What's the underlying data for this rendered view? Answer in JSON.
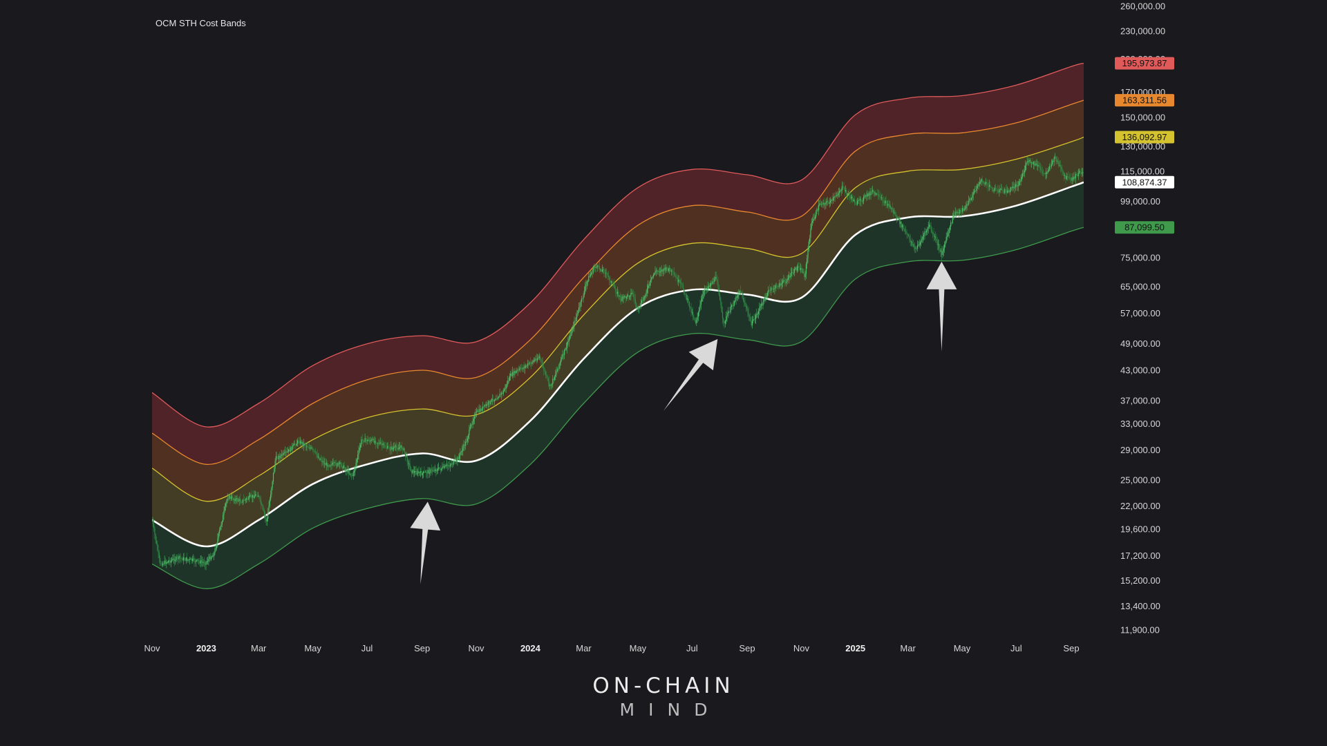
{
  "chart_data": {
    "type": "line",
    "title": "OCM STH Cost Bands",
    "y_scale": "log",
    "ylim": [
      11200,
      268000
    ],
    "xlim": [
      "2022-11-01",
      "2025-09-15"
    ],
    "grid": false,
    "y_ticks": [
      "260,000.00",
      "230,000.00",
      "200,000.00",
      "170,000.00",
      "150,000.00",
      "130,000.00",
      "115,000.00",
      "99,000.00",
      "75,000.00",
      "65,000.00",
      "57,000.00",
      "49,000.00",
      "43,000.00",
      "37,000.00",
      "33,000.00",
      "29,000.00",
      "25,000.00",
      "22,000.00",
      "19,600.00",
      "17,200.00",
      "15,200.00",
      "13,400.00",
      "11,900.00"
    ],
    "x_ticks": [
      {
        "label": "Nov",
        "date": "2022-11-01",
        "bold": false
      },
      {
        "label": "2023",
        "date": "2023-01-01",
        "bold": true
      },
      {
        "label": "Mar",
        "date": "2023-03-01",
        "bold": false
      },
      {
        "label": "May",
        "date": "2023-05-01",
        "bold": false
      },
      {
        "label": "Jul",
        "date": "2023-07-01",
        "bold": false
      },
      {
        "label": "Sep",
        "date": "2023-09-01",
        "bold": false
      },
      {
        "label": "Nov",
        "date": "2023-11-01",
        "bold": false
      },
      {
        "label": "2024",
        "date": "2024-01-01",
        "bold": true
      },
      {
        "label": "Mar",
        "date": "2024-03-01",
        "bold": false
      },
      {
        "label": "May",
        "date": "2024-05-01",
        "bold": false
      },
      {
        "label": "Jul",
        "date": "2024-07-01",
        "bold": false
      },
      {
        "label": "Sep",
        "date": "2024-09-01",
        "bold": false
      },
      {
        "label": "Nov",
        "date": "2024-11-01",
        "bold": false
      },
      {
        "label": "2025",
        "date": "2025-01-01",
        "bold": true
      },
      {
        "label": "Mar",
        "date": "2025-03-01",
        "bold": false
      },
      {
        "label": "May",
        "date": "2025-05-01",
        "bold": false
      },
      {
        "label": "Jul",
        "date": "2025-07-01",
        "bold": false
      },
      {
        "label": "Sep",
        "date": "2025-09-01",
        "bold": false
      }
    ],
    "series": [
      {
        "key": "upper3",
        "color": "#e05a5a",
        "last_value": "195,973.87",
        "x": [
          "2022-11-01",
          "2023-01-01",
          "2023-03-01",
          "2023-05-01",
          "2023-07-01",
          "2023-09-01",
          "2023-11-01",
          "2024-01-01",
          "2024-03-01",
          "2024-05-01",
          "2024-07-01",
          "2024-09-01",
          "2024-11-01",
          "2025-01-01",
          "2025-03-01",
          "2025-05-01",
          "2025-07-01",
          "2025-09-01",
          "2025-09-15"
        ],
        "y": [
          38500,
          32500,
          36500,
          44000,
          49000,
          51000,
          49500,
          60000,
          82000,
          106000,
          116000,
          113000,
          110000,
          152000,
          165000,
          167000,
          176000,
          193000,
          196000
        ]
      },
      {
        "key": "upper2",
        "color": "#e8882e",
        "last_value": "163,311.56",
        "x": [
          "2022-11-01",
          "2023-01-01",
          "2023-03-01",
          "2023-05-01",
          "2023-07-01",
          "2023-09-01",
          "2023-11-01",
          "2024-01-01",
          "2024-03-01",
          "2024-05-01",
          "2024-07-01",
          "2024-09-01",
          "2024-11-01",
          "2025-01-01",
          "2025-03-01",
          "2025-05-01",
          "2025-07-01",
          "2025-09-01",
          "2025-09-15"
        ],
        "y": [
          31500,
          27000,
          30500,
          36500,
          41000,
          43000,
          41500,
          50000,
          68000,
          88000,
          97000,
          94000,
          92000,
          127000,
          138000,
          139000,
          146000,
          160000,
          163300
        ]
      },
      {
        "key": "upper1",
        "color": "#d4c22e",
        "last_value": "136,092.97",
        "x": [
          "2022-11-01",
          "2023-01-01",
          "2023-03-01",
          "2023-05-01",
          "2023-07-01",
          "2023-09-01",
          "2023-11-01",
          "2024-01-01",
          "2024-03-01",
          "2024-05-01",
          "2024-07-01",
          "2024-09-01",
          "2024-11-01",
          "2025-01-01",
          "2025-03-01",
          "2025-05-01",
          "2025-07-01",
          "2025-09-01",
          "2025-09-15"
        ],
        "y": [
          26500,
          22500,
          25500,
          30500,
          34000,
          35500,
          34500,
          41500,
          56500,
          73000,
          80500,
          78500,
          76500,
          106000,
          115000,
          116000,
          122000,
          133000,
          136100
        ]
      },
      {
        "key": "sth_cost",
        "color": "#ffffff",
        "last_value": "108,874.37",
        "x": [
          "2022-11-01",
          "2023-01-01",
          "2023-03-01",
          "2023-05-01",
          "2023-07-01",
          "2023-09-01",
          "2023-11-01",
          "2024-01-01",
          "2024-03-01",
          "2024-05-01",
          "2024-07-01",
          "2024-09-01",
          "2024-11-01",
          "2025-01-01",
          "2025-03-01",
          "2025-05-01",
          "2025-07-01",
          "2025-09-01",
          "2025-09-15"
        ],
        "y": [
          20500,
          18000,
          20500,
          24500,
          27000,
          28500,
          27500,
          33500,
          45500,
          58500,
          64000,
          62500,
          61500,
          84000,
          91500,
          92000,
          97000,
          106500,
          108900
        ]
      },
      {
        "key": "lower1",
        "color": "#3f9a4c",
        "last_value": "87,099.50",
        "x": [
          "2022-11-01",
          "2023-01-01",
          "2023-03-01",
          "2023-05-01",
          "2023-07-01",
          "2023-09-01",
          "2023-11-01",
          "2024-01-01",
          "2024-03-01",
          "2024-05-01",
          "2024-07-01",
          "2024-09-01",
          "2024-11-01",
          "2025-01-01",
          "2025-03-01",
          "2025-05-01",
          "2025-07-01",
          "2025-09-01",
          "2025-09-15"
        ],
        "y": [
          16500,
          14600,
          16500,
          19700,
          21700,
          22800,
          22200,
          27000,
          36500,
          47000,
          51500,
          50000,
          49500,
          67500,
          73500,
          74000,
          78000,
          85500,
          87100
        ]
      }
    ],
    "band_fills": [
      {
        "between": [
          "upper3",
          "upper2"
        ],
        "color": "#5a262b"
      },
      {
        "between": [
          "upper2",
          "upper1"
        ],
        "color": "#5a3522"
      },
      {
        "between": [
          "upper1",
          "sth_cost"
        ],
        "color": "#4a4426"
      },
      {
        "between": [
          "sth_cost",
          "lower1"
        ],
        "color": "#213a2b"
      }
    ],
    "price": {
      "color": "#4cc36a",
      "x": [
        "2022-11-01",
        "2022-11-10",
        "2022-12-01",
        "2022-12-31",
        "2023-01-10",
        "2023-01-25",
        "2023-02-10",
        "2023-02-28",
        "2023-03-10",
        "2023-03-20",
        "2023-04-01",
        "2023-04-15",
        "2023-04-28",
        "2023-05-15",
        "2023-06-01",
        "2023-06-15",
        "2023-06-25",
        "2023-07-10",
        "2023-07-25",
        "2023-08-10",
        "2023-08-20",
        "2023-09-01",
        "2023-09-12",
        "2023-09-25",
        "2023-10-10",
        "2023-10-20",
        "2023-10-30",
        "2023-11-15",
        "2023-12-01",
        "2023-12-10",
        "2024-01-01",
        "2024-01-11",
        "2024-01-23",
        "2024-02-10",
        "2024-02-28",
        "2024-03-05",
        "2024-03-14",
        "2024-03-25",
        "2024-04-12",
        "2024-04-25",
        "2024-05-01",
        "2024-05-20",
        "2024-06-05",
        "2024-06-20",
        "2024-07-05",
        "2024-07-15",
        "2024-07-29",
        "2024-08-05",
        "2024-08-24",
        "2024-09-06",
        "2024-09-25",
        "2024-10-15",
        "2024-10-29",
        "2024-11-05",
        "2024-11-12",
        "2024-11-22",
        "2024-12-05",
        "2024-12-17",
        "2025-01-02",
        "2025-01-20",
        "2025-02-10",
        "2025-02-28",
        "2025-03-10",
        "2025-03-25",
        "2025-04-08",
        "2025-04-22",
        "2025-05-05",
        "2025-05-22",
        "2025-06-05",
        "2025-06-22",
        "2025-07-05",
        "2025-07-14",
        "2025-07-25",
        "2025-08-02",
        "2025-08-14",
        "2025-08-24",
        "2025-09-01",
        "2025-09-10",
        "2025-09-15"
      ],
      "y": [
        20500,
        16500,
        17000,
        16600,
        17400,
        23000,
        22500,
        23300,
        20300,
        27800,
        28500,
        30300,
        29300,
        27000,
        27000,
        25500,
        30500,
        30300,
        29200,
        29400,
        26100,
        25800,
        26200,
        26500,
        27500,
        30000,
        34500,
        36500,
        38500,
        42000,
        44500,
        46000,
        39500,
        48000,
        61000,
        67000,
        72000,
        70000,
        61000,
        63000,
        57500,
        70000,
        71000,
        65000,
        54500,
        64000,
        68000,
        54000,
        64000,
        54000,
        63500,
        67000,
        72000,
        68500,
        88000,
        98000,
        99000,
        106000,
        98000,
        104000,
        96000,
        84000,
        78000,
        88000,
        76500,
        93000,
        96000,
        110000,
        105000,
        104000,
        109000,
        121000,
        118000,
        113000,
        123000,
        112000,
        110000,
        114000,
        115000
      ]
    },
    "annotations": [
      {
        "type": "arrow",
        "at": "2023-09-12",
        "value": 22600
      },
      {
        "type": "arrow",
        "at": "2024-08-05",
        "value": 50500
      },
      {
        "type": "arrow",
        "at": "2025-04-08",
        "value": 74000
      }
    ]
  },
  "brand": {
    "line1": "ON-CHAIN",
    "line2": "MIND"
  }
}
